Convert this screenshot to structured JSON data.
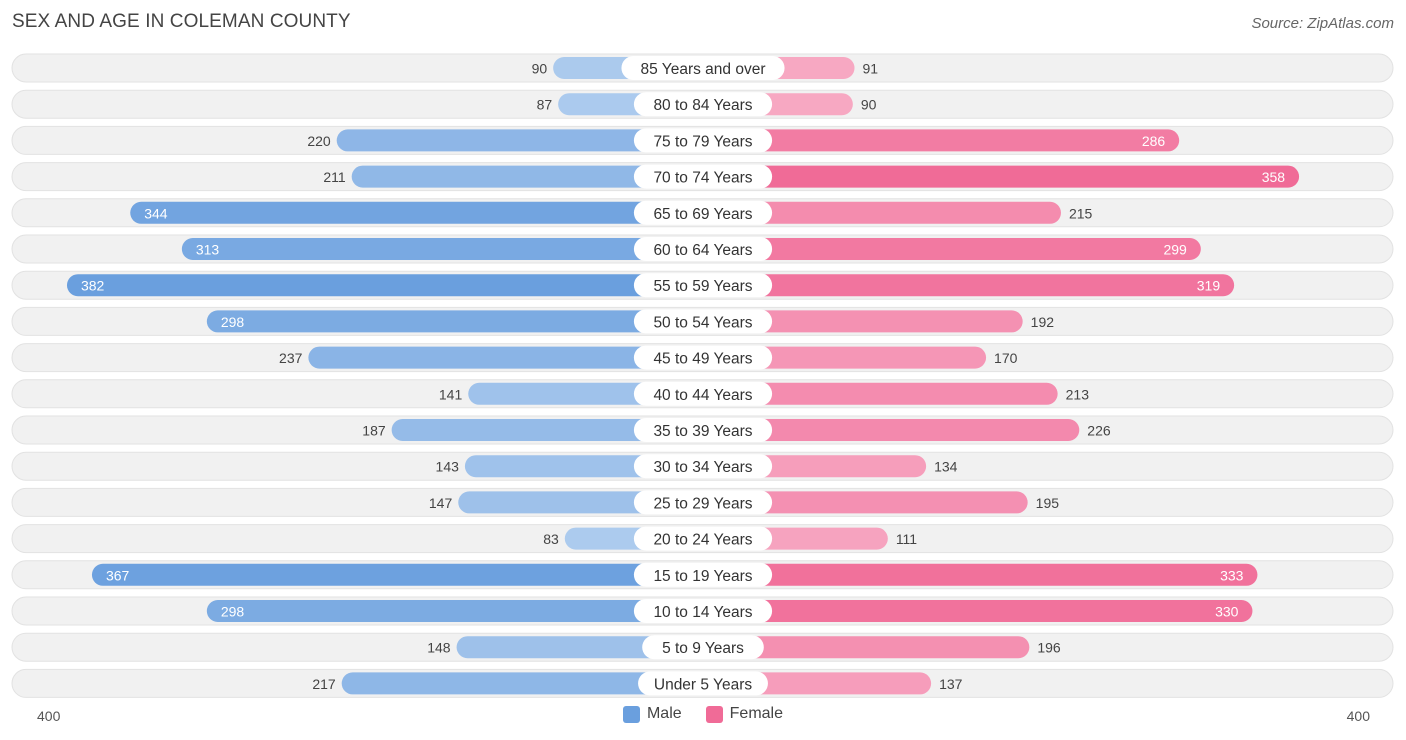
{
  "header": {
    "title": "SEX AND AGE IN COLEMAN COUNTY",
    "source": "Source: ZipAtlas.com"
  },
  "colors": {
    "male_dark": "#6a9fde",
    "male_light": "#adcbee",
    "female_dark": "#f06b97",
    "female_light": "#f7aac4",
    "row_bg": "#f1f1f1",
    "row_border": "#e2e2e2"
  },
  "legend": {
    "male_label": "Male",
    "female_label": "Female"
  },
  "axis": {
    "left_label": "400",
    "right_label": "400"
  },
  "chart_data": {
    "type": "bar",
    "orientation": "horizontal-diverging",
    "max": 400,
    "categories": [
      "85 Years and over",
      "80 to 84 Years",
      "75 to 79 Years",
      "70 to 74 Years",
      "65 to 69 Years",
      "60 to 64 Years",
      "55 to 59 Years",
      "50 to 54 Years",
      "45 to 49 Years",
      "40 to 44 Years",
      "35 to 39 Years",
      "30 to 34 Years",
      "25 to 29 Years",
      "20 to 24 Years",
      "15 to 19 Years",
      "10 to 14 Years",
      "5 to 9 Years",
      "Under 5 Years"
    ],
    "series": [
      {
        "name": "Male",
        "values": [
          90,
          87,
          220,
          211,
          344,
          313,
          382,
          298,
          237,
          141,
          187,
          143,
          147,
          83,
          367,
          298,
          148,
          217
        ]
      },
      {
        "name": "Female",
        "values": [
          91,
          90,
          286,
          358,
          215,
          299,
          319,
          192,
          170,
          213,
          226,
          134,
          195,
          111,
          333,
          330,
          196,
          137
        ]
      }
    ]
  }
}
